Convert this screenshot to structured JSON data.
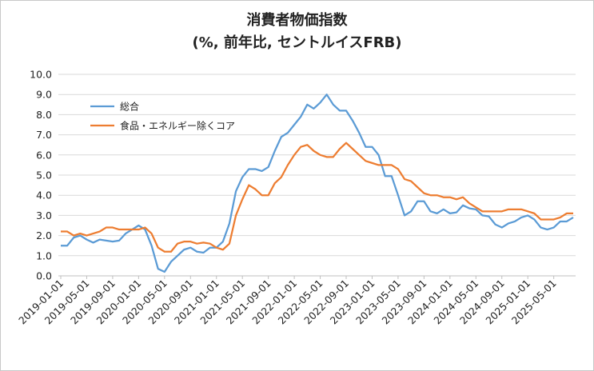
{
  "chart_data": {
    "type": "line",
    "title": "消費者物価指数",
    "subtitle": "(%, 前年比, セントルイスFRB)",
    "xlabel": "",
    "ylabel": "",
    "ylim": [
      0,
      10
    ],
    "yticks": [
      "0.0",
      "1.0",
      "2.0",
      "3.0",
      "4.0",
      "5.0",
      "6.0",
      "7.0",
      "8.0",
      "9.0",
      "10.0"
    ],
    "grid": "horizontal",
    "legend_position": "top-left",
    "xtick_labels": [
      "2019-01-01",
      "2019-05-01",
      "2019-09-01",
      "2020-01-01",
      "2020-05-01",
      "2020-09-01",
      "2021-01-01",
      "2021-05-01",
      "2021-09-01",
      "2022-01-01",
      "2022-05-01",
      "2022-09-01",
      "2023-01-01",
      "2023-05-01",
      "2023-09-01",
      "2024-01-01",
      "2024-05-01",
      "2024-09-01",
      "2025-01-01",
      "2025-05-01"
    ],
    "x_start": "2019-01",
    "x_end": "2025-08",
    "series": [
      {
        "name": "総合",
        "color": "#5b9bd5",
        "values": [
          1.5,
          1.5,
          1.9,
          2.0,
          1.8,
          1.65,
          1.8,
          1.75,
          1.7,
          1.75,
          2.1,
          2.3,
          2.5,
          2.3,
          1.5,
          0.35,
          0.2,
          0.7,
          1.0,
          1.3,
          1.4,
          1.2,
          1.15,
          1.4,
          1.4,
          1.7,
          2.6,
          4.2,
          4.9,
          5.3,
          5.3,
          5.2,
          5.4,
          6.2,
          6.9,
          7.1,
          7.5,
          7.9,
          8.5,
          8.3,
          8.6,
          9.0,
          8.5,
          8.2,
          8.2,
          7.7,
          7.1,
          6.4,
          6.4,
          6.0,
          4.95,
          4.95,
          4.0,
          3.0,
          3.2,
          3.7,
          3.7,
          3.2,
          3.1,
          3.3,
          3.1,
          3.15,
          3.5,
          3.35,
          3.3,
          3.0,
          2.95,
          2.55,
          2.4,
          2.6,
          2.7,
          2.9,
          3.0,
          2.8,
          2.4,
          2.3,
          2.4,
          2.7,
          2.7,
          2.9
        ]
      },
      {
        "name": "食品・エネルギー除くコア",
        "color": "#ed7d31",
        "values": [
          2.2,
          2.2,
          2.0,
          2.1,
          2.0,
          2.1,
          2.2,
          2.4,
          2.4,
          2.3,
          2.3,
          2.3,
          2.3,
          2.4,
          2.1,
          1.4,
          1.2,
          1.2,
          1.6,
          1.7,
          1.7,
          1.6,
          1.65,
          1.6,
          1.4,
          1.3,
          1.6,
          3.0,
          3.8,
          4.5,
          4.3,
          4.0,
          4.0,
          4.6,
          4.9,
          5.5,
          6.0,
          6.4,
          6.5,
          6.2,
          6.0,
          5.9,
          5.9,
          6.3,
          6.6,
          6.3,
          6.0,
          5.7,
          5.6,
          5.5,
          5.5,
          5.5,
          5.3,
          4.8,
          4.7,
          4.4,
          4.1,
          4.0,
          4.0,
          3.9,
          3.9,
          3.8,
          3.9,
          3.6,
          3.4,
          3.2,
          3.2,
          3.2,
          3.2,
          3.3,
          3.3,
          3.3,
          3.2,
          3.1,
          2.8,
          2.8,
          2.8,
          2.9,
          3.1,
          3.1
        ]
      }
    ]
  }
}
